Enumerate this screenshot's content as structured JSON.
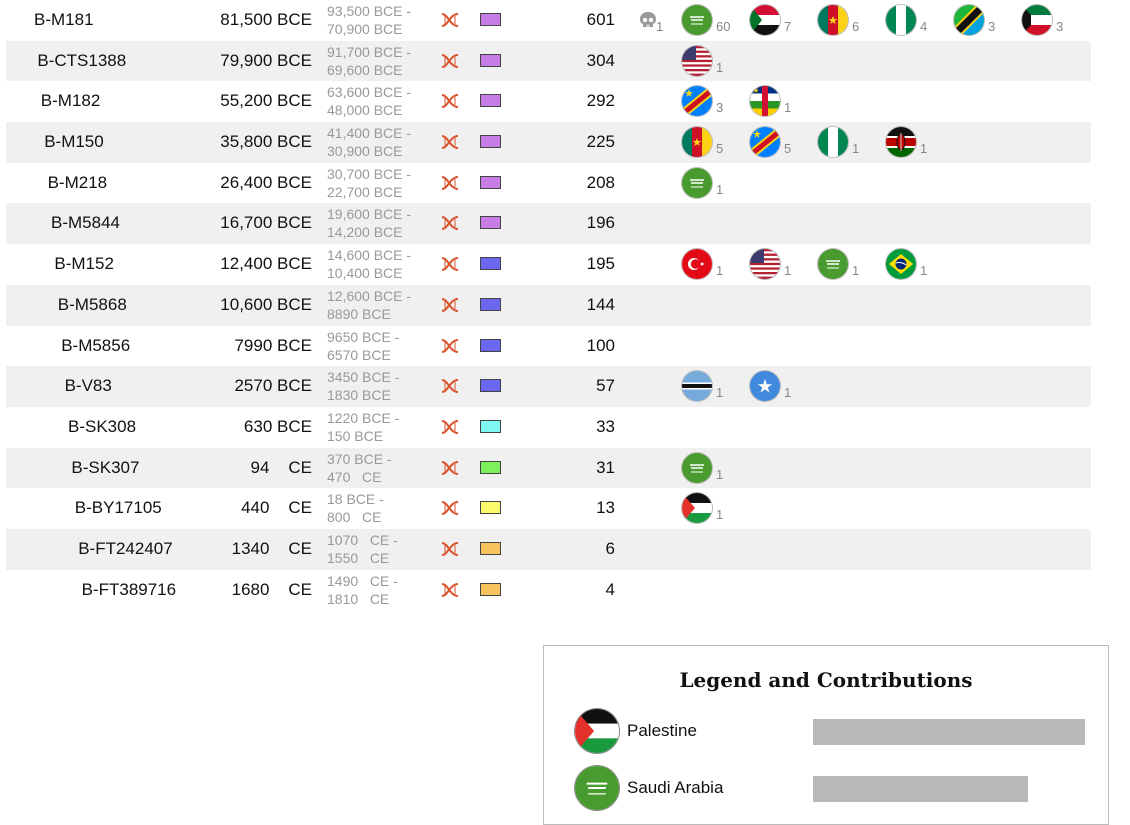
{
  "rows": [
    {
      "id": "B-M181",
      "date_num": "81,500",
      "date_era": "BCE",
      "range_line1": "93,500 BCE -",
      "range_line2": "70,900 BCE",
      "color": "#c77de6",
      "count": "601",
      "extras": [
        {
          "type": "skull",
          "icon": "skull-icon",
          "num": "1"
        }
      ],
      "flags": [
        {
          "country": "saudi-arabia",
          "num": "60"
        },
        {
          "country": "sudan",
          "num": "7"
        },
        {
          "country": "cameroon",
          "num": "6"
        },
        {
          "country": "nigeria",
          "num": "4"
        },
        {
          "country": "tanzania",
          "num": "3"
        },
        {
          "country": "kuwait",
          "num": "3"
        }
      ]
    },
    {
      "id": "B-CTS1388",
      "date_num": "79,900",
      "date_era": "BCE",
      "range_line1": "91,700 BCE -",
      "range_line2": "69,600 BCE",
      "color": "#c77de6",
      "count": "304",
      "flags": [
        {
          "country": "united-states",
          "num": "1"
        }
      ]
    },
    {
      "id": "B-M182",
      "date_num": "55,200",
      "date_era": "BCE",
      "range_line1": "63,600 BCE -",
      "range_line2": "48,000 BCE",
      "color": "#c77de6",
      "count": "292",
      "flags": [
        {
          "country": "dr-congo",
          "num": "3"
        },
        {
          "country": "central-african-republic",
          "num": "1"
        }
      ]
    },
    {
      "id": "B-M150",
      "date_num": "35,800",
      "date_era": "BCE",
      "range_line1": "41,400 BCE -",
      "range_line2": "30,900 BCE",
      "color": "#c77de6",
      "count": "225",
      "flags": [
        {
          "country": "cameroon",
          "num": "5"
        },
        {
          "country": "dr-congo",
          "num": "5"
        },
        {
          "country": "nigeria",
          "num": "1"
        },
        {
          "country": "kenya",
          "num": "1"
        }
      ]
    },
    {
      "id": "B-M218",
      "date_num": "26,400",
      "date_era": "BCE",
      "range_line1": "30,700 BCE -",
      "range_line2": "22,700 BCE",
      "color": "#c77de6",
      "count": "208",
      "flags": [
        {
          "country": "saudi-arabia",
          "num": "1"
        }
      ]
    },
    {
      "id": "B-M5844",
      "date_num": "16,700",
      "date_era": "BCE",
      "range_line1": "19,600 BCE -",
      "range_line2": "14,200 BCE",
      "color": "#c77de6",
      "count": "196",
      "flags": []
    },
    {
      "id": "B-M152",
      "date_num": "12,400",
      "date_era": "BCE",
      "range_line1": "14,600 BCE -",
      "range_line2": "10,400 BCE",
      "color": "#6b67f0",
      "count": "195",
      "flags": [
        {
          "country": "turkey",
          "num": "1"
        },
        {
          "country": "united-states",
          "num": "1"
        },
        {
          "country": "saudi-arabia",
          "num": "1"
        },
        {
          "country": "brazil",
          "num": "1"
        }
      ]
    },
    {
      "id": "B-M5868",
      "date_num": "10,600",
      "date_era": "BCE",
      "range_line1": "12,600 BCE -",
      "range_line2": "8890 BCE",
      "color": "#6b67f0",
      "count": "144",
      "flags": []
    },
    {
      "id": "B-M5856",
      "date_num": "7990",
      "date_era": "BCE",
      "range_line1": "9650 BCE -",
      "range_line2": "6570 BCE",
      "color": "#6b67f0",
      "count": "100",
      "flags": []
    },
    {
      "id": "B-V83",
      "date_num": "2570",
      "date_era": "BCE",
      "range_line1": "3450 BCE -",
      "range_line2": "1830 BCE",
      "color": "#6b67f0",
      "count": "57",
      "flags": [
        {
          "country": "botswana",
          "num": "1"
        },
        {
          "country": "somalia",
          "num": "1"
        }
      ]
    },
    {
      "id": "B-SK308",
      "date_num": "630",
      "date_era": "BCE",
      "range_line1": "1220 BCE -",
      "range_line2": "150 BCE",
      "color": "#7ff7f3",
      "count": "33",
      "flags": []
    },
    {
      "id": "B-SK307",
      "date_num": "94",
      "date_era": "CE",
      "range_line1": "370 BCE -",
      "range_line2": "470   CE",
      "color": "#7ef05c",
      "count": "31",
      "flags": [
        {
          "country": "saudi-arabia",
          "num": "1"
        }
      ]
    },
    {
      "id": "B-BY17105",
      "date_num": "440",
      "date_era": "CE",
      "range_line1": "18 BCE -",
      "range_line2": "800   CE",
      "color": "#fbfb6b",
      "count": "13",
      "flags": [
        {
          "country": "palestine",
          "num": "1"
        }
      ]
    },
    {
      "id": "B-FT242407",
      "date_num": "1340",
      "date_era": "CE",
      "range_line1": "1070   CE -",
      "range_line2": "1550   CE",
      "color": "#f7c460",
      "count": "6",
      "flags": []
    },
    {
      "id": "B-FT389716",
      "date_num": "1680",
      "date_era": "CE",
      "range_line1": "1490   CE -",
      "range_line2": "1810   CE",
      "color": "#f7c460",
      "count": "4",
      "flags": []
    }
  ],
  "legend": {
    "title": "Legend and Contributions",
    "items": [
      {
        "country": "palestine",
        "label": "Palestine",
        "share": 1.0
      },
      {
        "country": "saudi-arabia",
        "label": "Saudi Arabia",
        "share": 0.79
      }
    ]
  },
  "icons": {
    "dna": "dna-icon",
    "skull": "skull-icon"
  }
}
